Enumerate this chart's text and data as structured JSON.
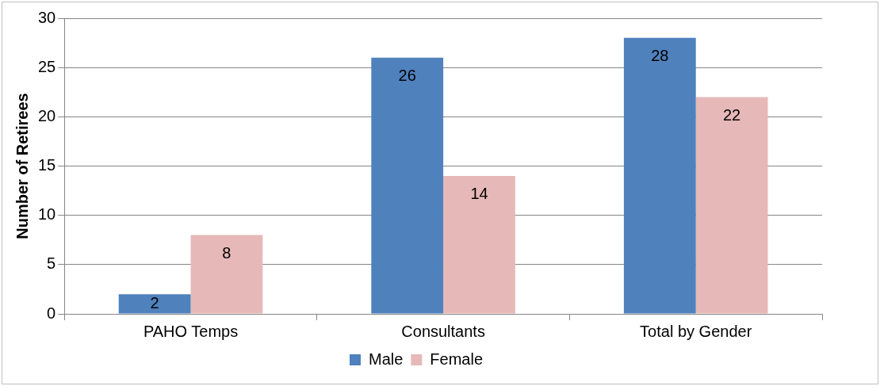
{
  "chart_data": {
    "type": "bar",
    "ylabel": "Number of Retirees",
    "categories": [
      "PAHO Temps",
      "Consultants",
      "Total by Gender"
    ],
    "series": [
      {
        "name": "Male",
        "color": "#4f81bd",
        "values": [
          2,
          26,
          28
        ]
      },
      {
        "name": "Female",
        "color": "#e6b9b8",
        "values": [
          8,
          14,
          22
        ]
      }
    ],
    "ylim": [
      0,
      30
    ],
    "yticks": [
      0,
      5,
      10,
      15,
      20,
      25,
      30
    ],
    "grid": "y",
    "legend": "bottom",
    "data_labels": true
  }
}
